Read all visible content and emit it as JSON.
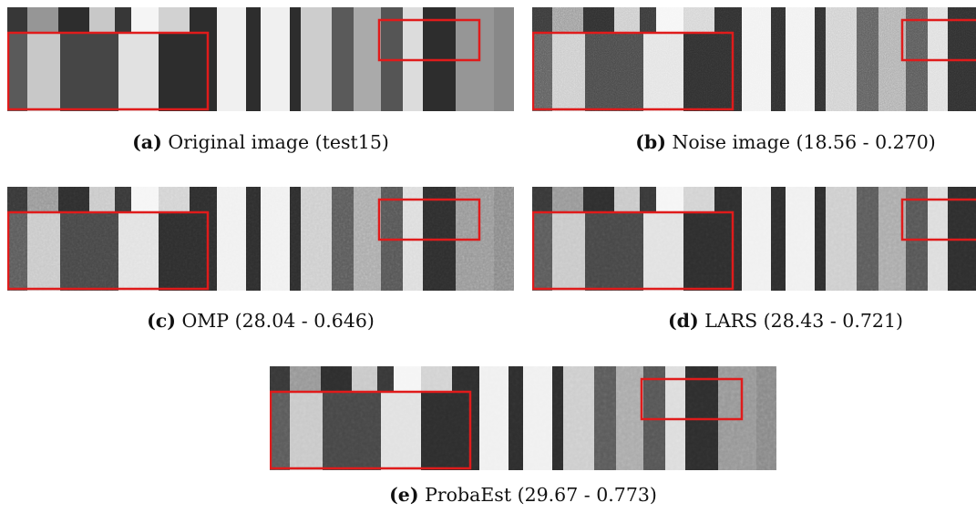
{
  "figure": {
    "panels": [
      {
        "key": "a",
        "label": "(a)",
        "caption": "Original image (test15)"
      },
      {
        "key": "b",
        "label": "(b)",
        "caption": "Noise image (18.56 - 0.270)"
      },
      {
        "key": "c",
        "label": "(c)",
        "caption": "OMP (28.04 - 0.646)"
      },
      {
        "key": "d",
        "label": "(d)",
        "caption": "LARS (28.43 - 0.721)"
      },
      {
        "key": "e",
        "label": "(e)",
        "caption": "ProbaEst (29.67 - 0.773)"
      }
    ],
    "highlight_color": "#e01b1b"
  }
}
